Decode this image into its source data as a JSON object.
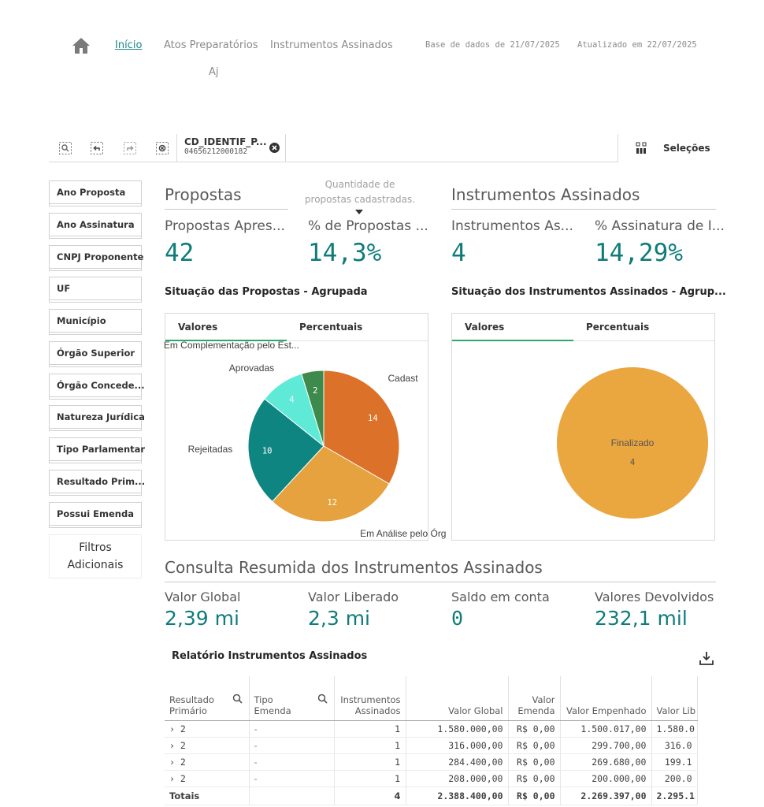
{
  "nav": {
    "home_icon": "home-icon",
    "inicio": "Início",
    "atos": "Atos Preparatórios",
    "instrumentos": "Instrumentos Assinados",
    "aj": "Aj",
    "base_dados": "Base de dados de 21/07/2025",
    "atualizado": "Atualizado em 22/07/2025"
  },
  "toolbar": {
    "selection_field": "CD_IDENTIF_P...",
    "selection_value": "04656212000182",
    "selections_label": "Seleções"
  },
  "filters": [
    "Ano Proposta",
    "Ano Assinatura",
    "CNPJ Proponente",
    "UF",
    "Município",
    "Órgão Superior",
    "Órgão Concede...",
    "Natureza Jurídica",
    "Tipo Parlamentar",
    "Resultado Prim...",
    "Possui Emenda"
  ],
  "filters_extra": "Filtros Adicionais",
  "propostas": {
    "title": "Propostas",
    "tooltip": "Quantidade de propostas cadastradas.",
    "kpi1_label": "Propostas Apres...",
    "kpi1_value": "42",
    "kpi2_label": "% de Propostas ...",
    "kpi2_value": "14,3%"
  },
  "instrumentos": {
    "title": "Instrumentos Assinados",
    "kpi1_label": "Instrumentos As...",
    "kpi1_value": "4",
    "kpi2_label": "% Assinatura de I...",
    "kpi2_value": "14,29%"
  },
  "chart_left": {
    "title": "Situação das Propostas - Agrupada",
    "tab1": "Valores",
    "tab2": "Percentuais"
  },
  "chart_right": {
    "title": "Situação dos Instrumentos Assinados - Agrup...",
    "tab1": "Valores",
    "tab2": "Percentuais"
  },
  "chart_data": [
    {
      "type": "pie",
      "title": "Situação das Propostas - Agrupada",
      "slices": [
        {
          "label": "Cadast",
          "value": 14,
          "color": "#dc7129"
        },
        {
          "label": "Em Análise pelo Órg",
          "value": 12,
          "color": "#e5a23e"
        },
        {
          "label": "Rejeitadas",
          "value": 10,
          "color": "#0f8582"
        },
        {
          "label": "Aprovadas",
          "value": 4,
          "color": "#5eead7"
        },
        {
          "label": "Em Complementação pelo Est...",
          "value": 2,
          "color": "#3d8a4c"
        }
      ]
    },
    {
      "type": "pie",
      "title": "Situação dos Instrumentos Assinados - Agrup...",
      "slices": [
        {
          "label": "Finalizado",
          "value": 4,
          "color": "#eaa63f"
        }
      ]
    }
  ],
  "consulta": {
    "title": "Consulta Resumida dos Instrumentos Assinados",
    "k1_label": "Valor Global",
    "k1_value": "2,39 mi",
    "k2_label": "Valor Liberado",
    "k2_value": "2,3 mi",
    "k3_label": "Saldo em conta",
    "k3_value": "0",
    "k4_label": "Valores Devolvidos",
    "k4_value": "232,1 mil"
  },
  "relatorio": {
    "title": "Relatório Instrumentos Assinados",
    "headers": [
      "Resultado Primário",
      "Tipo Emenda",
      "Instrumentos Assinados",
      "Valor Global",
      "Valor Emenda",
      "Valor Empenhado",
      "Valor Lib"
    ],
    "rows": [
      [
        "› 2",
        "-",
        "1",
        "1.580.000,00",
        "R$ 0,00",
        "1.500.017,00",
        "1.580.0"
      ],
      [
        "› 2",
        "-",
        "1",
        "316.000,00",
        "R$ 0,00",
        "299.700,00",
        "316.0"
      ],
      [
        "› 2",
        "-",
        "1",
        "284.400,00",
        "R$ 0,00",
        "269.680,00",
        "199.1"
      ],
      [
        "› 2",
        "-",
        "1",
        "208.000,00",
        "R$ 0,00",
        "200.000,00",
        "200.0"
      ]
    ],
    "totals": [
      "Totais",
      "",
      "4",
      "2.388.400,00",
      "R$ 0,00",
      "2.269.397,00",
      "2.295.1"
    ]
  }
}
